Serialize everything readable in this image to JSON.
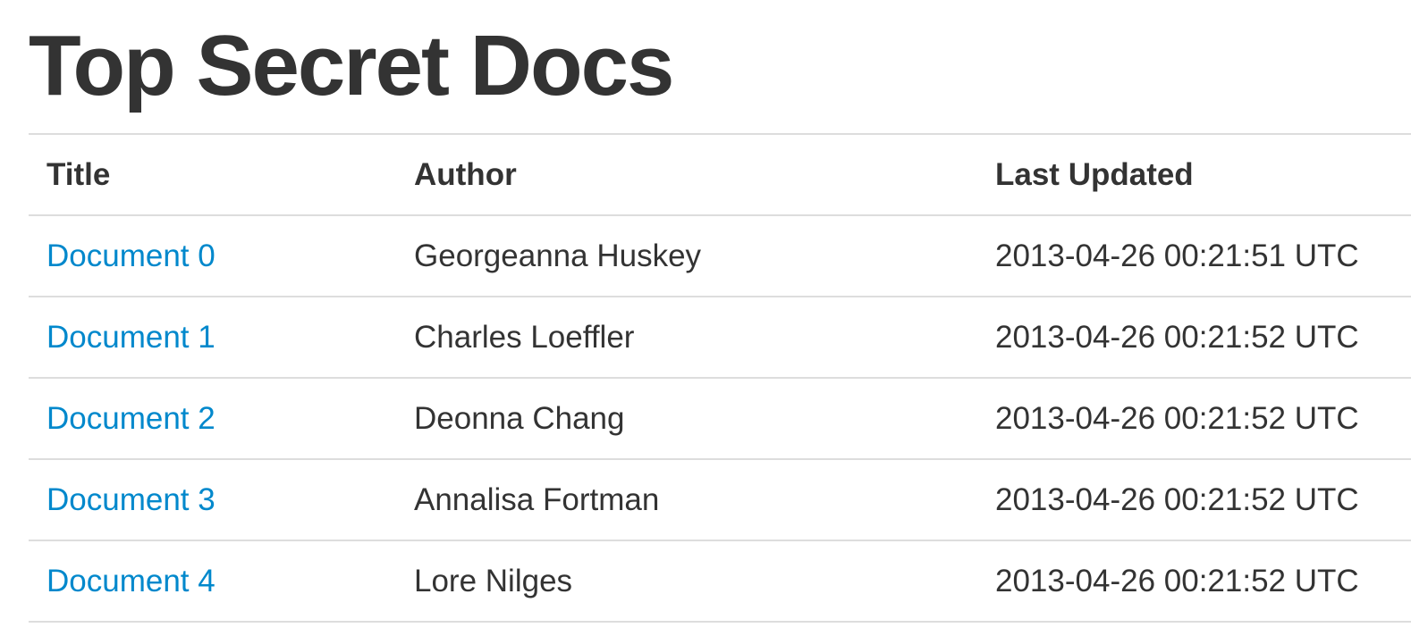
{
  "page": {
    "title": "Top Secret Docs"
  },
  "table": {
    "headers": {
      "title": "Title",
      "author": "Author",
      "last_updated": "Last Updated"
    },
    "rows": [
      {
        "title": "Document 0",
        "author": "Georgeanna Huskey",
        "last_updated": "2013-04-26 00:21:51 UTC"
      },
      {
        "title": "Document 1",
        "author": "Charles Loeffler",
        "last_updated": "2013-04-26 00:21:52 UTC"
      },
      {
        "title": "Document 2",
        "author": "Deonna Chang",
        "last_updated": "2013-04-26 00:21:52 UTC"
      },
      {
        "title": "Document 3",
        "author": "Annalisa Fortman",
        "last_updated": "2013-04-26 00:21:52 UTC"
      },
      {
        "title": "Document 4",
        "author": "Lore Nilges",
        "last_updated": "2013-04-26 00:21:52 UTC"
      }
    ]
  },
  "colors": {
    "link": "#0088cc",
    "text": "#333333",
    "divider": "#dddddd"
  }
}
